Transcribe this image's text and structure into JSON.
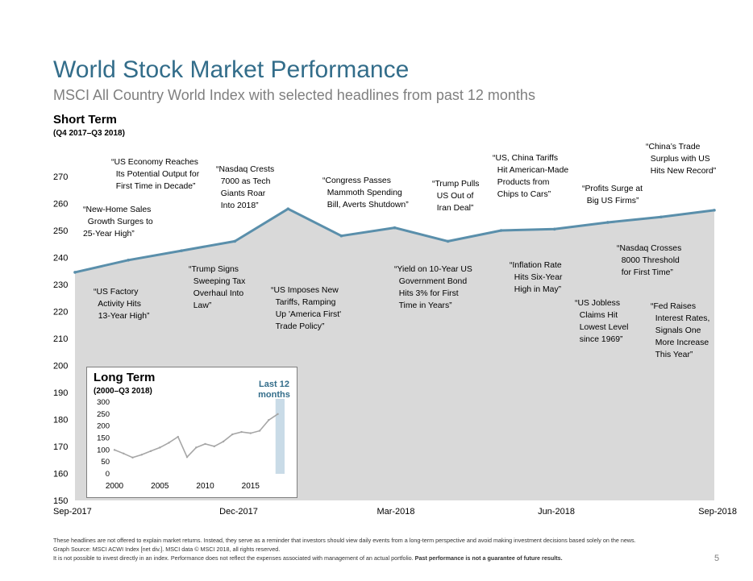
{
  "header": {
    "title": "World Stock Market Performance",
    "subtitle": "MSCI All Country World Index with selected headlines from past 12 months"
  },
  "section": {
    "label": "Short Term",
    "range": "(Q4 2017–Q3 2018)"
  },
  "annotations": [
    "“New-Home Sales\n  Growth Surges to\n25-Year High”",
    "“US Economy Reaches\n  Its Potential Output for\n  First Time in Decade”",
    "“US Factory\n  Activity Hits\n  13-Year High”",
    "“Nasdaq Crests\n  7000 as Tech\n  Giants Roar\n  Into 2018”",
    "“Trump Signs\n  Sweeping Tax\n  Overhaul Into\n  Law”",
    "“US Imposes New\n  Tariffs, Ramping\n  Up 'America First'\n  Trade Policy”",
    "“Congress Passes\n  Mammoth Spending\n  Bill, Averts Shutdown”",
    "“Trump Pulls\n  US Out of\n  Iran Deal”",
    "“Yield on 10-Year US\n  Government Bond\n  Hits 3% for First\n  Time in Years”",
    "“US, China Tariffs\n  Hit American-Made\n  Products from\n  Chips to Cars”",
    "“Inflation Rate\n  Hits Six-Year\n  High in May”",
    "“Profits Surge at\n  Big US Firms”",
    "“China’s Trade\n  Surplus with US\n  Hits New Record”",
    "“Nasdaq Crosses\n  8000 Threshold\n  for First Time”",
    "“US Jobless\n  Claims Hit\n  Lowest Level\n  since 1969”",
    "“Fed Raises\n  Interest Rates,\n  Signals One\n  More Increase\n  This Year”"
  ],
  "chart_data": [
    {
      "type": "area",
      "ylim": [
        150,
        270
      ],
      "yticks": [
        "150",
        "160",
        "170",
        "180",
        "190",
        "200",
        "210",
        "220",
        "230",
        "240",
        "250",
        "260",
        "270"
      ],
      "xticks": [
        "Sep-2017",
        "Dec-2017",
        "Mar-2018",
        "Jun-2018",
        "Sep-2018"
      ],
      "x": [
        "Sep-2017",
        "Oct-2017",
        "Nov-2017",
        "Dec-2017",
        "Jan-2018",
        "Feb-2018",
        "Mar-2018",
        "Apr-2018",
        "May-2018",
        "Jun-2018",
        "Jul-2018",
        "Aug-2018",
        "Sep-2018"
      ],
      "values": [
        234.5,
        239.0,
        242.5,
        246.0,
        258.0,
        248.0,
        251.0,
        246.0,
        250.0,
        250.5,
        253.0,
        255.0,
        257.5
      ],
      "series_color": "#5a8fab",
      "area_color": "#d9d9d9"
    },
    {
      "type": "line",
      "title": "Long Term",
      "subtitle": "(2000–Q3 2018)",
      "ylim": [
        0,
        300
      ],
      "yticks": [
        "300",
        "250",
        "200",
        "150",
        "100",
        "50",
        "0"
      ],
      "xticks": [
        "2000",
        "2005",
        "2010",
        "2015"
      ],
      "x": [
        2000,
        2001,
        2002,
        2003,
        2004,
        2005,
        2006,
        2007,
        2008,
        2009,
        2010,
        2011,
        2012,
        2013,
        2014,
        2015,
        2016,
        2017,
        2018
      ],
      "values": [
        100,
        85,
        68,
        80,
        95,
        110,
        130,
        155,
        70,
        110,
        125,
        115,
        135,
        165,
        175,
        170,
        180,
        225,
        250
      ],
      "highlight": "Last 12\nmonths",
      "series_color": "#a6a6a6",
      "highlight_color": "#c9dbe7"
    }
  ],
  "footer": {
    "line1": "These headlines are not offered to explain market returns. Instead, they serve as a reminder that investors should view daily events from a long-term perspective and avoid making investment decisions based solely on the news.",
    "line2": "Graph Source: MSCI ACWI Index [net div.]. MSCI data © MSCI 2018, all rights reserved.",
    "line3_plain": "It is not possible to invest directly in an index. Performance does not reflect the expenses associated with management of an actual portfolio. ",
    "line3_bold": "Past performance is not a guarantee of future results.",
    "page": "5"
  }
}
